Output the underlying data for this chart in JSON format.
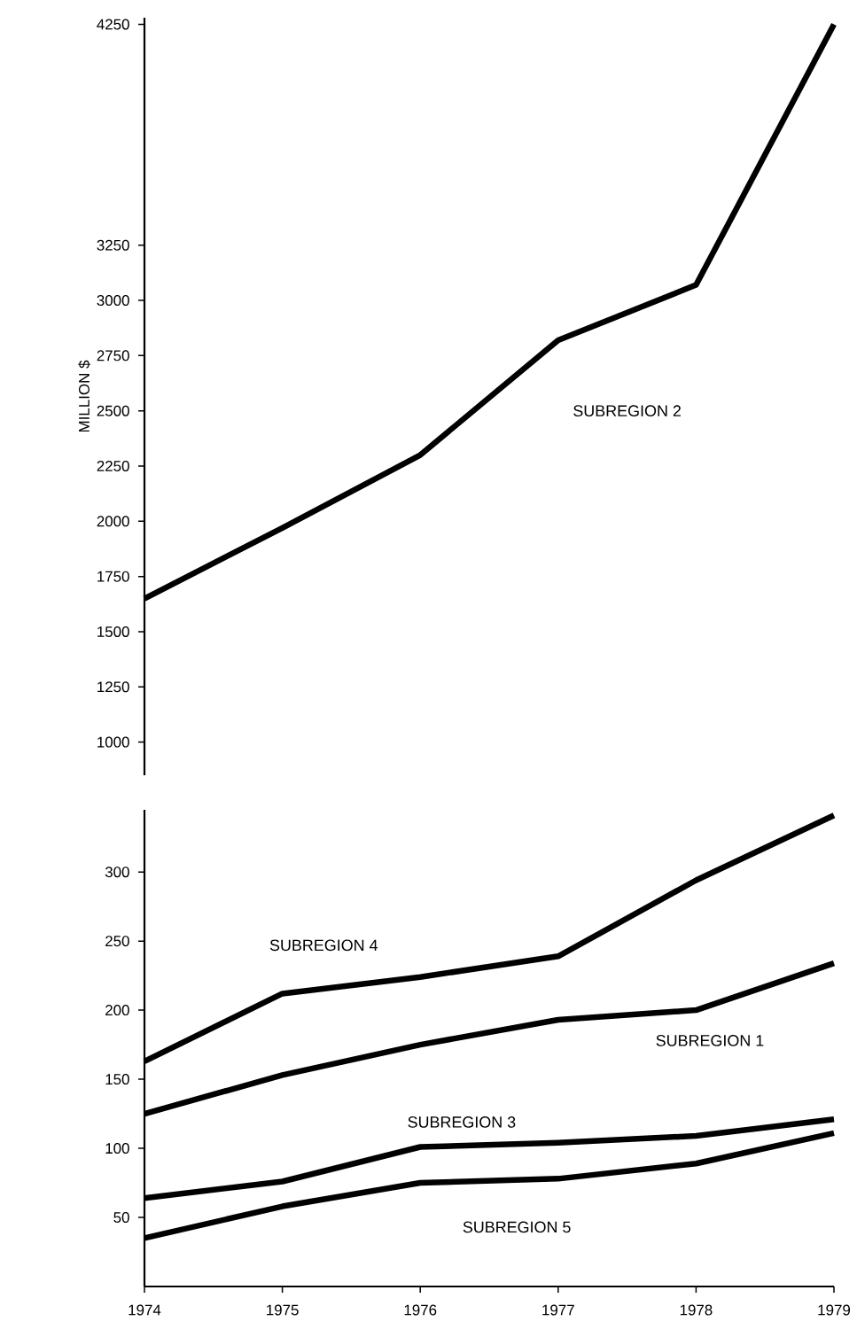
{
  "chart_data": [
    {
      "type": "line",
      "ylabel": "MILLION $",
      "x": [
        1974,
        1975,
        1976,
        1977,
        1978,
        1979
      ],
      "xlim": [
        1974,
        1979
      ],
      "ylim": [
        850,
        4280
      ],
      "yticks": [
        1000,
        1250,
        1500,
        1750,
        2000,
        2250,
        2500,
        2750,
        3000,
        3250,
        4250
      ],
      "tick_labels": "y",
      "grid": false,
      "legend": false,
      "marker": "none",
      "line_style": "solid",
      "series": [
        {
          "name": "SUBREGION 2",
          "color": "#000000",
          "values": [
            1650,
            1970,
            2300,
            2820,
            3070,
            4250
          ]
        }
      ]
    },
    {
      "type": "line",
      "x": [
        1974,
        1975,
        1976,
        1977,
        1978,
        1979
      ],
      "xlim": [
        1974,
        1979
      ],
      "xticks": [
        1974,
        1975,
        1976,
        1977,
        1978,
        1979
      ],
      "ylim": [
        0,
        345
      ],
      "yticks": [
        50,
        100,
        150,
        200,
        250,
        300
      ],
      "grid": false,
      "legend": false,
      "marker": "none",
      "line_style": "solid",
      "series": [
        {
          "name": "SUBREGION 1",
          "color": "#000000",
          "values": [
            125,
            153,
            175,
            193,
            200,
            234
          ]
        },
        {
          "name": "SUBREGION 3",
          "color": "#000000",
          "values": [
            64,
            76,
            101,
            104,
            109,
            121
          ]
        },
        {
          "name": "SUBREGION 4",
          "color": "#000000",
          "values": [
            163,
            212,
            224,
            239,
            294,
            341
          ]
        },
        {
          "name": "SUBREGION 5",
          "color": "#000000",
          "values": [
            35,
            58,
            75,
            78,
            89,
            111
          ]
        }
      ]
    }
  ]
}
